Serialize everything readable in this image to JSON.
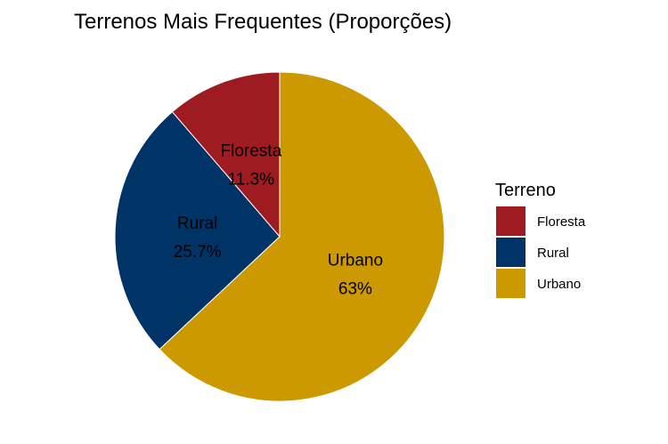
{
  "chart_data": {
    "type": "pie",
    "title": "Terrenos Mais Frequentes (Proporções)",
    "legend": {
      "title": "Terreno",
      "placement": "right"
    },
    "slices": [
      {
        "name": "Floresta",
        "value": 11.3,
        "label": "11.3%",
        "color": "#9E1B22"
      },
      {
        "name": "Rural",
        "value": 25.7,
        "label": "25.7%",
        "color": "#003366"
      },
      {
        "name": "Urbano",
        "value": 63,
        "label": "63%",
        "color": "#CC9900"
      }
    ]
  }
}
